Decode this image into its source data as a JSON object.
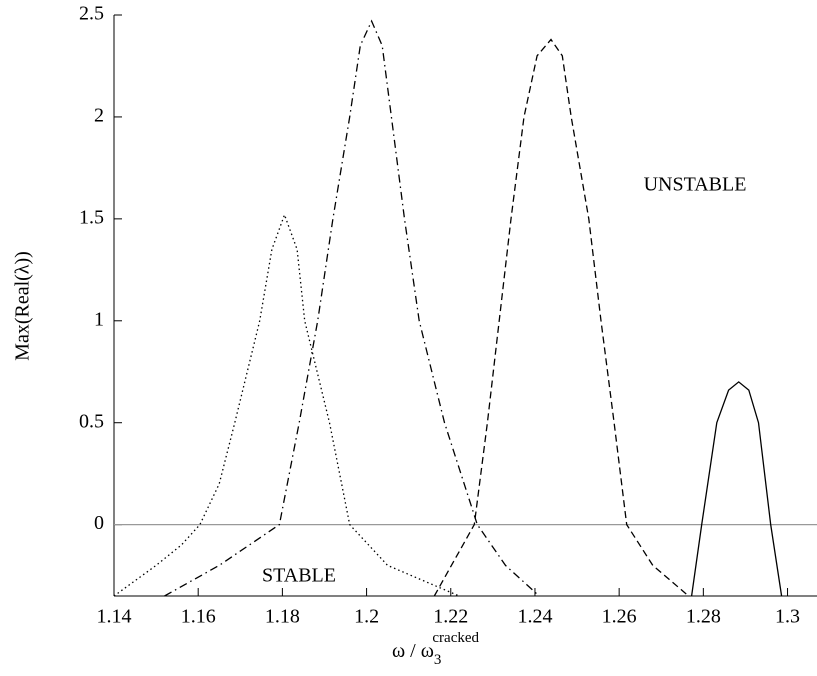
{
  "chart_data": {
    "type": "line",
    "xlabel": {
      "main": "ω  / ω",
      "sub": "3",
      "sup": "cracked"
    },
    "ylabel": "Max(Real(λ))",
    "annotations": [
      "UNSTABLE",
      "STABLE"
    ],
    "xlim": [
      1.14,
      1.307
    ],
    "xticks": [
      1.14,
      1.16,
      1.18,
      1.2,
      1.22,
      1.24,
      1.26,
      1.28,
      1.3
    ],
    "ylim": [
      -0.35,
      2.5
    ],
    "yticks": [
      0,
      0.5,
      1,
      1.5,
      2,
      2.5
    ],
    "zero_line": true,
    "zero_line_color": "#999999",
    "series": [
      {
        "color": "#000000",
        "dash": "dotted",
        "x": [
          1.14,
          1.15,
          1.156,
          1.1604,
          1.165,
          1.1687,
          1.1746,
          1.1775,
          1.1805,
          1.1835,
          1.1853,
          1.1912,
          1.196,
          1.205,
          1.222
        ],
        "values": [
          -0.35,
          -0.2,
          -0.1,
          0,
          0.2,
          0.5,
          1.0,
          1.35,
          1.52,
          1.35,
          1.0,
          0.5,
          0,
          -0.2,
          -0.35
        ]
      },
      {
        "color": "#000000",
        "dash": "dashdot",
        "x": [
          1.152,
          1.165,
          1.1793,
          1.184,
          1.1884,
          1.192,
          1.196,
          1.1985,
          1.2012,
          1.2037,
          1.2059,
          1.209,
          1.2125,
          1.2185,
          1.2263,
          1.233,
          1.241
        ],
        "values": [
          -0.35,
          -0.2,
          0,
          0.5,
          1.0,
          1.5,
          2.0,
          2.35,
          2.47,
          2.35,
          2.0,
          1.5,
          1.0,
          0.5,
          0,
          -0.2,
          -0.35
        ]
      },
      {
        "color": "#000000",
        "dash": "dashed",
        "x": [
          1.2161,
          1.2256,
          1.2287,
          1.2315,
          1.2343,
          1.2374,
          1.2405,
          1.2438,
          1.2465,
          1.2486,
          1.2528,
          1.2557,
          1.2588,
          1.2618,
          1.268,
          1.2765
        ],
        "values": [
          -0.35,
          0,
          0.5,
          1.0,
          1.5,
          2.0,
          2.3,
          2.38,
          2.3,
          2.0,
          1.5,
          1.0,
          0.5,
          0,
          -0.2,
          -0.35
        ]
      },
      {
        "color": "#000000",
        "dash": "solid",
        "x": [
          1.2772,
          1.2796,
          1.2832,
          1.286,
          1.2884,
          1.2908,
          1.2931,
          1.296,
          1.2986
        ],
        "values": [
          -0.35,
          0,
          0.5,
          0.66,
          0.7,
          0.66,
          0.5,
          0,
          -0.35
        ]
      }
    ]
  }
}
